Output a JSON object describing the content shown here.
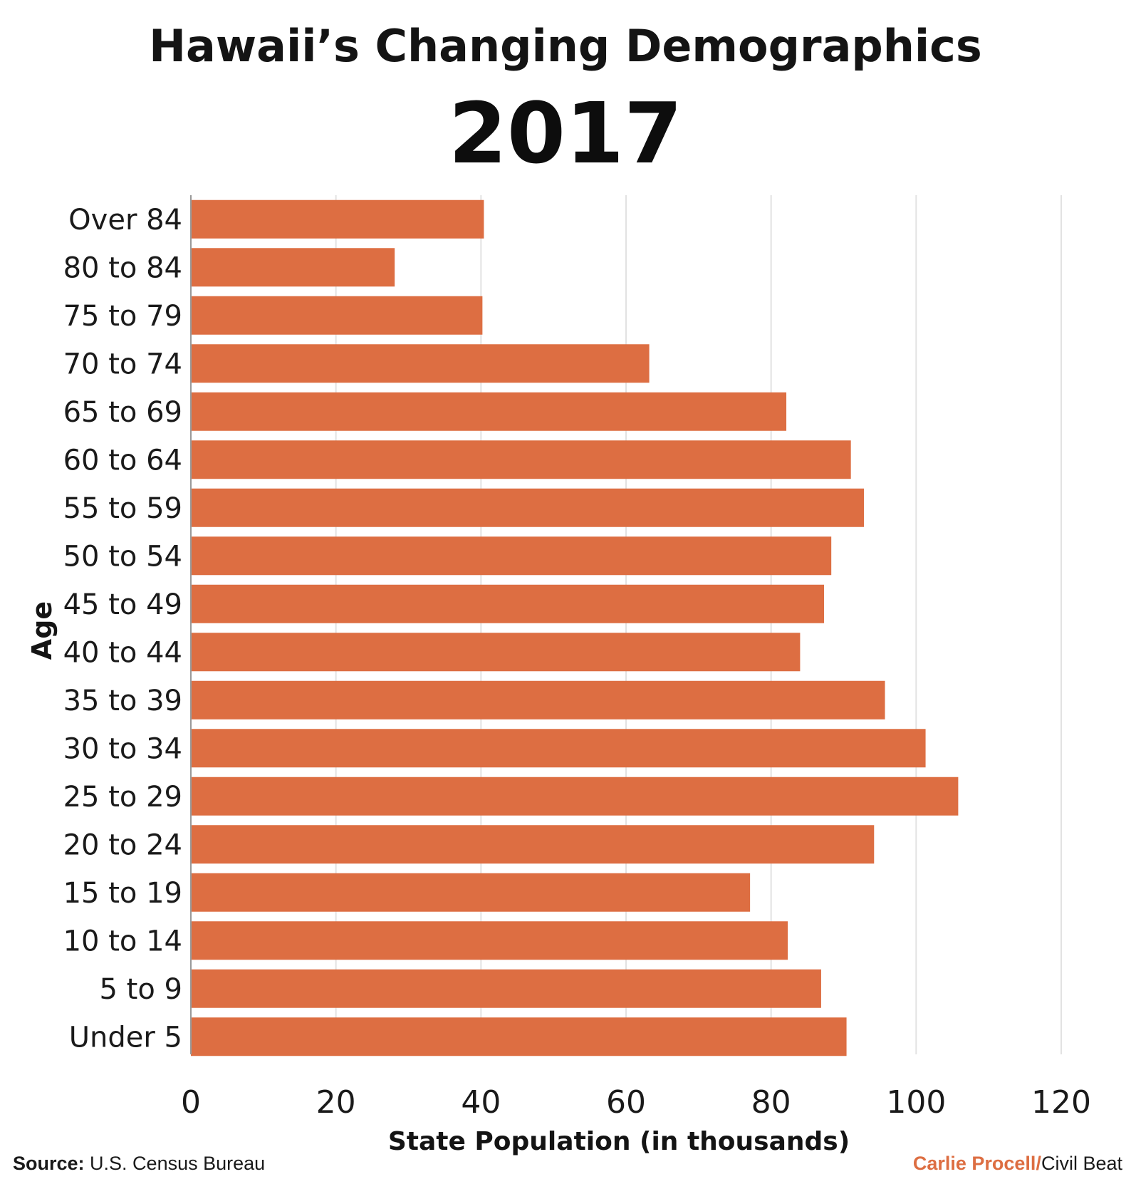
{
  "header": {
    "title": "Hawaii’s Changing Demographics",
    "subtitle": "2017"
  },
  "footer": {
    "source_label": "Source:",
    "source_text": "U.S. Census Bureau",
    "credit_author": "Carlie Procell",
    "credit_sep": "/",
    "credit_org": "Civil Beat"
  },
  "colors": {
    "bar": "#dd6e42",
    "grid": "#e2e2e2",
    "accent": "#dd6e42"
  },
  "chart_data": {
    "type": "bar",
    "orientation": "horizontal",
    "title": "Hawaii’s Changing Demographics",
    "subtitle": "2017",
    "xlabel": "State Population (in thousands)",
    "ylabel": "Age",
    "xlim": [
      0,
      120
    ],
    "xticks": [
      "0",
      "20",
      "40",
      "60",
      "80",
      "100",
      "120"
    ],
    "grid": true,
    "categories": [
      "Over 84",
      "80 to 84",
      "75 to 79",
      "70 to 74",
      "65 to 69",
      "60 to 64",
      "55 to 59",
      "50 to 54",
      "45 to 49",
      "40 to 44",
      "35 to 39",
      "30 to 34",
      "25 to 29",
      "20 to 24",
      "15 to 19",
      "10 to 14",
      "5 to 9",
      "Under 5"
    ],
    "values": [
      40.4,
      28.1,
      40.2,
      63.2,
      82.1,
      91.0,
      92.8,
      88.3,
      87.3,
      84.0,
      95.7,
      101.3,
      105.8,
      94.2,
      77.1,
      82.3,
      86.9,
      90.4
    ]
  }
}
